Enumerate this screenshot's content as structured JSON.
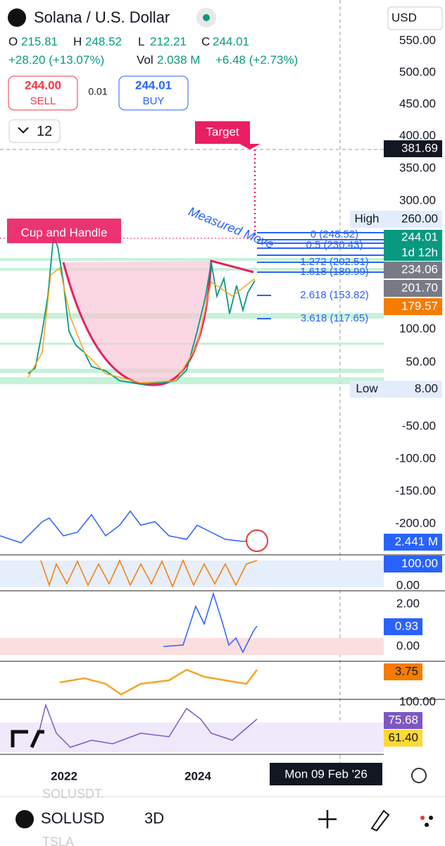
{
  "header": {
    "title": "Solana / U.S. Dollar",
    "currency": "USD",
    "ohlc": [
      {
        "label": "O",
        "value": "215.81"
      },
      {
        "label": "H",
        "value": "248.52"
      },
      {
        "label": "L",
        "value": "212.21"
      },
      {
        "label": "C",
        "value": "244.01"
      }
    ],
    "change": "+28.20 (+13.07%)",
    "volume_label": "Vol",
    "volume": "2.038 M",
    "volume_change": "+6.48 (+2.73%)"
  },
  "trade": {
    "sell_price": "244.00",
    "sell_label": "SELL",
    "spread": "0.01",
    "buy_price": "244.01",
    "buy_label": "BUY"
  },
  "interval": "12",
  "annotations": {
    "target": "Target",
    "pattern": "Cup and Handle",
    "measured_move": "Measured Move"
  },
  "fib_levels": [
    "0 (248.52)",
    "0.5 (230.43)",
    "1.272 (202.51)",
    "1.618 (189.99)",
    "2.618 (153.82)",
    "3.618 (117.65)"
  ],
  "price_axis": [
    "550.00",
    "500.00",
    "450.00",
    "400.00",
    "350.00",
    "300.00",
    "100.00",
    "50.00",
    "-50.00",
    "-100.00",
    "-150.00",
    "-200.00"
  ],
  "indicator_axis": [
    "0.00",
    "2.00",
    "0.00",
    "100.00"
  ],
  "price_tags": {
    "target": "381.69",
    "high_label": "High",
    "high": "260.00",
    "last": "244.01",
    "countdown": "1d 12h",
    "level1": "234.06",
    "level2": "201.70",
    "level3": "179.57",
    "low_label": "Low",
    "low": "8.00",
    "volume": "2.441 M",
    "stoch": "100.00",
    "zscore": "0.93",
    "osc": "3.75",
    "rsi": "75.68",
    "rsi_ma": "61.40"
  },
  "time_axis": [
    "2022",
    "2024"
  ],
  "crosshair_date": "Mon 09 Feb '26",
  "footer": {
    "symbol": "SOLUSD",
    "timeframe": "3D",
    "suggestions": [
      "SOLUSDT.",
      "TSLA"
    ]
  }
}
